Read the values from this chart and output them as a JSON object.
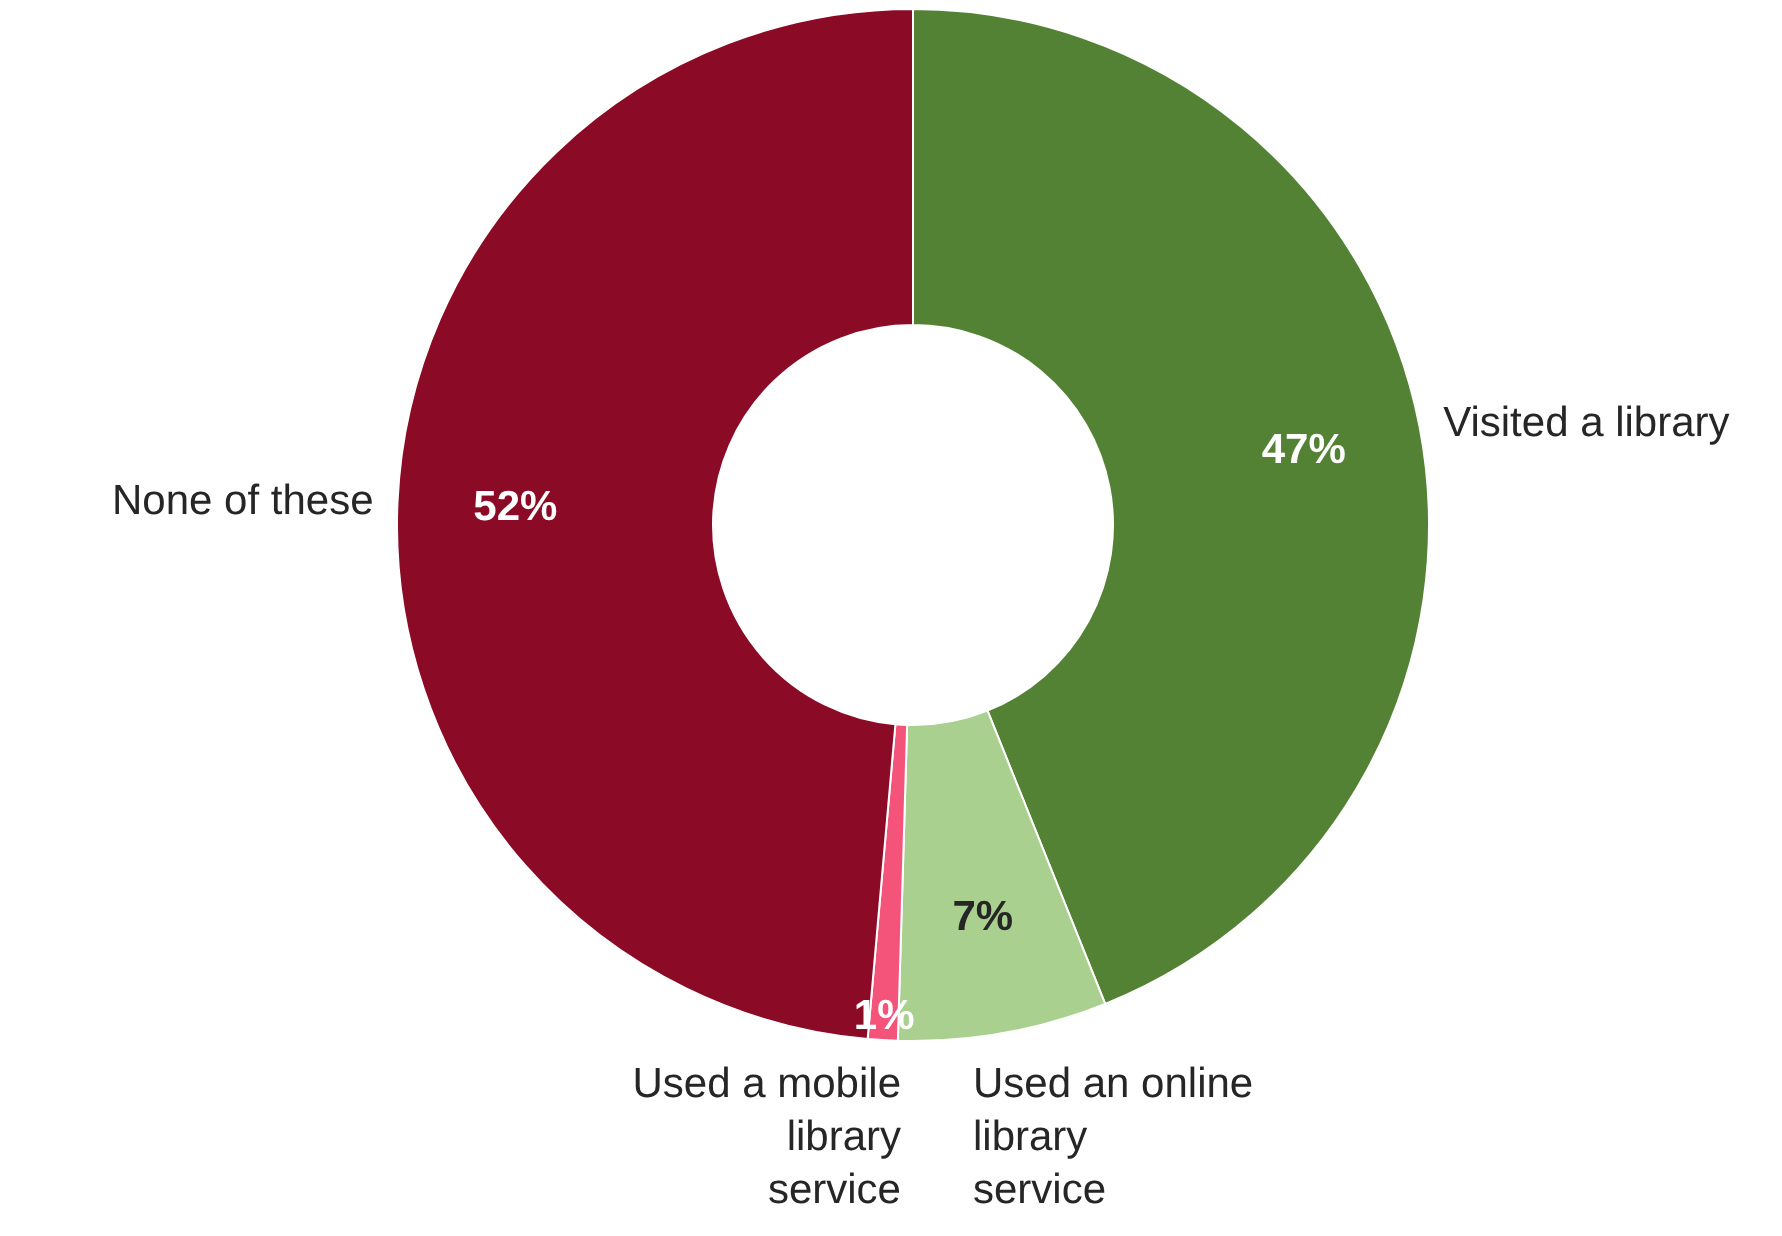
{
  "chart_data": {
    "type": "donut",
    "categories": [
      "Visited a library",
      "Used an online library service",
      "Used a mobile library service",
      "None of these"
    ],
    "values": [
      47,
      7,
      1,
      52
    ],
    "colors": [
      "#548235",
      "#a9d08e",
      "#f4537a",
      "#8b0a25"
    ],
    "value_labels": [
      "47%",
      "7%",
      "1%",
      "52%"
    ]
  }
}
